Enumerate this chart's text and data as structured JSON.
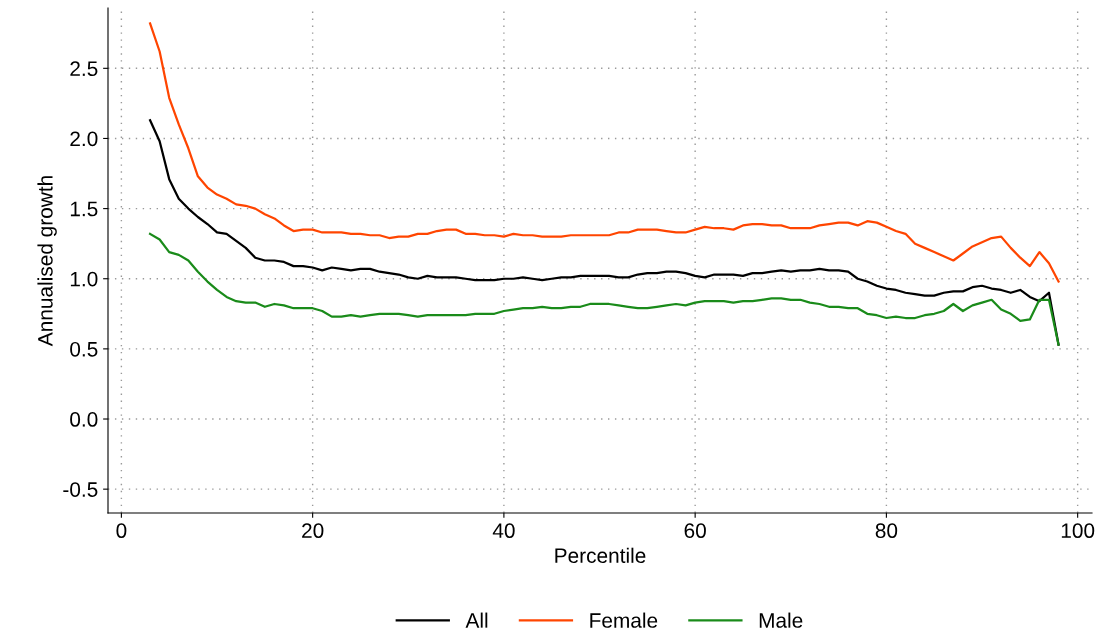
{
  "chart_data": {
    "type": "line",
    "xlabel": "Percentile",
    "ylabel": "Annualised growth",
    "x": [
      3,
      4,
      5,
      6,
      7,
      8,
      9,
      10,
      11,
      12,
      13,
      14,
      15,
      16,
      17,
      18,
      19,
      20,
      21,
      22,
      23,
      24,
      25,
      26,
      27,
      28,
      29,
      30,
      31,
      32,
      33,
      34,
      35,
      36,
      37,
      38,
      39,
      40,
      41,
      42,
      43,
      44,
      45,
      46,
      47,
      48,
      49,
      50,
      51,
      52,
      53,
      54,
      55,
      56,
      57,
      58,
      59,
      60,
      61,
      62,
      63,
      64,
      65,
      66,
      67,
      68,
      69,
      70,
      71,
      72,
      73,
      74,
      75,
      76,
      77,
      78,
      79,
      80,
      81,
      82,
      83,
      84,
      85,
      86,
      87,
      88,
      89,
      90,
      91,
      92,
      93,
      94,
      95,
      96,
      97,
      98
    ],
    "series": [
      {
        "name": "All",
        "color": "#000000",
        "values": [
          2.13,
          1.98,
          1.71,
          1.57,
          1.5,
          1.44,
          1.39,
          1.33,
          1.32,
          1.27,
          1.22,
          1.15,
          1.13,
          1.13,
          1.12,
          1.09,
          1.09,
          1.08,
          1.06,
          1.08,
          1.07,
          1.06,
          1.07,
          1.07,
          1.05,
          1.04,
          1.03,
          1.01,
          1.0,
          1.02,
          1.01,
          1.01,
          1.01,
          1.0,
          0.99,
          0.99,
          0.99,
          1.0,
          1.0,
          1.01,
          1.0,
          0.99,
          1.0,
          1.01,
          1.01,
          1.02,
          1.02,
          1.02,
          1.02,
          1.01,
          1.01,
          1.03,
          1.04,
          1.04,
          1.05,
          1.05,
          1.04,
          1.02,
          1.01,
          1.03,
          1.03,
          1.03,
          1.02,
          1.04,
          1.04,
          1.05,
          1.06,
          1.05,
          1.06,
          1.06,
          1.07,
          1.06,
          1.06,
          1.05,
          1.0,
          0.98,
          0.95,
          0.93,
          0.92,
          0.9,
          0.89,
          0.88,
          0.88,
          0.9,
          0.91,
          0.91,
          0.94,
          0.95,
          0.93,
          0.92,
          0.9,
          0.92,
          0.87,
          0.84,
          0.9,
          0.53
        ]
      },
      {
        "name": "Female",
        "color": "#ff4500",
        "values": [
          2.82,
          2.62,
          2.29,
          2.1,
          1.93,
          1.73,
          1.65,
          1.6,
          1.57,
          1.53,
          1.52,
          1.5,
          1.46,
          1.43,
          1.38,
          1.34,
          1.35,
          1.35,
          1.33,
          1.33,
          1.33,
          1.32,
          1.32,
          1.31,
          1.31,
          1.29,
          1.3,
          1.3,
          1.32,
          1.32,
          1.34,
          1.35,
          1.35,
          1.32,
          1.32,
          1.31,
          1.31,
          1.3,
          1.32,
          1.31,
          1.31,
          1.3,
          1.3,
          1.3,
          1.31,
          1.31,
          1.31,
          1.31,
          1.31,
          1.33,
          1.33,
          1.35,
          1.35,
          1.35,
          1.34,
          1.33,
          1.33,
          1.35,
          1.37,
          1.36,
          1.36,
          1.35,
          1.38,
          1.39,
          1.39,
          1.38,
          1.38,
          1.36,
          1.36,
          1.36,
          1.38,
          1.39,
          1.4,
          1.4,
          1.38,
          1.41,
          1.4,
          1.37,
          1.34,
          1.32,
          1.25,
          1.22,
          1.19,
          1.16,
          1.13,
          1.18,
          1.23,
          1.26,
          1.29,
          1.3,
          1.22,
          1.15,
          1.09,
          1.19,
          1.11,
          0.98
        ]
      },
      {
        "name": "Male",
        "color": "#1a8b1a",
        "values": [
          1.32,
          1.28,
          1.19,
          1.17,
          1.13,
          1.05,
          0.98,
          0.92,
          0.87,
          0.84,
          0.83,
          0.83,
          0.8,
          0.82,
          0.81,
          0.79,
          0.79,
          0.79,
          0.77,
          0.73,
          0.73,
          0.74,
          0.73,
          0.74,
          0.75,
          0.75,
          0.75,
          0.74,
          0.73,
          0.74,
          0.74,
          0.74,
          0.74,
          0.74,
          0.75,
          0.75,
          0.75,
          0.77,
          0.78,
          0.79,
          0.79,
          0.8,
          0.79,
          0.79,
          0.8,
          0.8,
          0.82,
          0.82,
          0.82,
          0.81,
          0.8,
          0.79,
          0.79,
          0.8,
          0.81,
          0.82,
          0.81,
          0.83,
          0.84,
          0.84,
          0.84,
          0.83,
          0.84,
          0.84,
          0.85,
          0.86,
          0.86,
          0.85,
          0.85,
          0.83,
          0.82,
          0.8,
          0.8,
          0.79,
          0.79,
          0.75,
          0.74,
          0.72,
          0.73,
          0.72,
          0.72,
          0.74,
          0.75,
          0.77,
          0.82,
          0.77,
          0.81,
          0.83,
          0.85,
          0.78,
          0.75,
          0.7,
          0.71,
          0.85,
          0.85,
          0.53
        ]
      }
    ],
    "xlim": [
      -1.4,
      101.5
    ],
    "ylim": [
      -0.67,
      2.93
    ],
    "xticks": [
      0,
      20,
      40,
      60,
      80,
      100
    ],
    "yticks": [
      {
        "value": -0.5,
        "label": "-0.5"
      },
      {
        "value": 0,
        "label": "0.0"
      },
      {
        "value": 0.5,
        "label": "0.5"
      },
      {
        "value": 1,
        "label": "1.0"
      },
      {
        "value": 1.5,
        "label": "1.5"
      },
      {
        "value": 2,
        "label": "2.0"
      },
      {
        "value": 2.5,
        "label": "2.5"
      }
    ],
    "grid": true,
    "legend": "bottom",
    "marker": "none",
    "line_style": "solid"
  }
}
